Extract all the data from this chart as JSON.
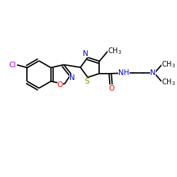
{
  "bg_color": "#ffffff",
  "atom_colors": {
    "C": "#000000",
    "N": "#0000cc",
    "O": "#ff0000",
    "S": "#888800",
    "Cl": "#aa00cc",
    "H": "#000000"
  },
  "figsize": [
    2.5,
    2.5
  ],
  "dpi": 100,
  "xlim": [
    0,
    10
  ],
  "ylim": [
    0,
    10
  ]
}
